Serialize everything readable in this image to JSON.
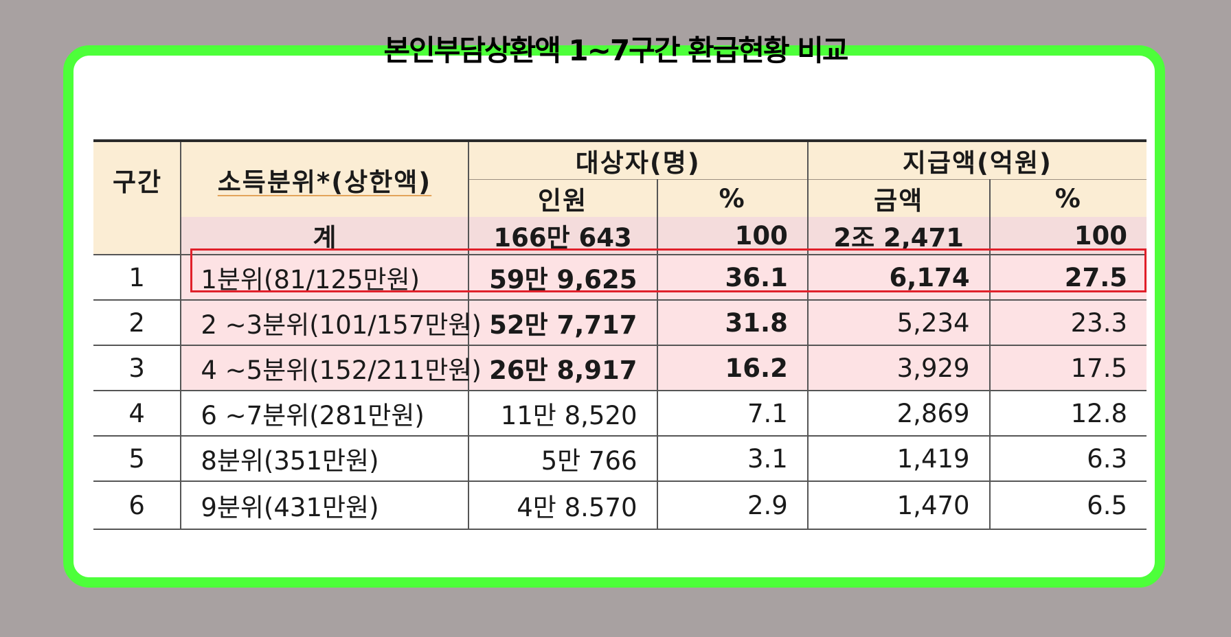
{
  "title": "본인부담상환액 1~7구간 환급현황 비교",
  "headers": {
    "section": "구간",
    "income": "소득분위*(상한액)",
    "recipients": "대상자(명)",
    "payment": "지급액(억원)",
    "persons": "인원",
    "pct": "%",
    "amount": "금액"
  },
  "total": {
    "label": "계",
    "persons": "166만 643",
    "persons_pct": "100",
    "amount": "2조 2,471",
    "amount_pct": "100"
  },
  "rows": [
    {
      "section": "1",
      "income": "1분위(81/125만원)",
      "persons": "59만 9,625",
      "persons_pct": "36.1",
      "amount": "6,174",
      "amount_pct": "27.5"
    },
    {
      "section": "2",
      "income": "2 ~3분위(101/157만원)",
      "persons": "52만 7,717",
      "persons_pct": "31.8",
      "amount": "5,234",
      "amount_pct": "23.3"
    },
    {
      "section": "3",
      "income": "4 ~5분위(152/211만원)",
      "persons": "26만 8,917",
      "persons_pct": "16.2",
      "amount": "3,929",
      "amount_pct": "17.5"
    },
    {
      "section": "4",
      "income": "6 ~7분위(281만원)",
      "persons": "11만 8,520",
      "persons_pct": "7.1",
      "amount": "2,869",
      "amount_pct": "12.8"
    },
    {
      "section": "5",
      "income": "8분위(351만원)",
      "persons": "5만 766",
      "persons_pct": "3.1",
      "amount": "1,419",
      "amount_pct": "6.3"
    },
    {
      "section": "6",
      "income": "9분위(431만원)",
      "persons": "4만 8.570",
      "persons_pct": "2.9",
      "amount": "1,470",
      "amount_pct": "6.5"
    }
  ],
  "colors": {
    "background": "#a8a1a1",
    "frame": "#4dff3a",
    "header_fill": "#fbedd4",
    "total_fill": "#f4dcdc",
    "row_highlight": "#fde2e4",
    "highlight_border": "#e0202a"
  }
}
